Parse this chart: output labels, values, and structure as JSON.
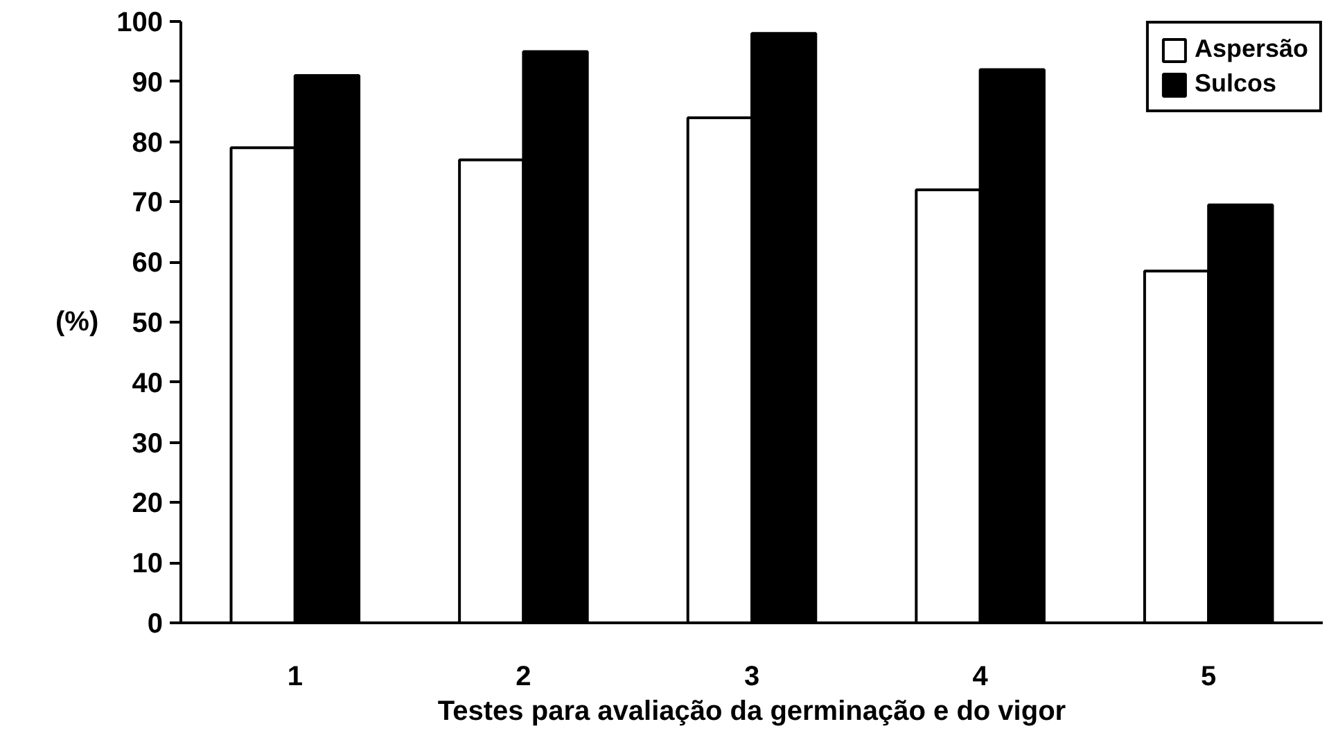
{
  "chart_data": {
    "type": "bar",
    "xlabel": "Testes para avaliação da germinação e do vigor",
    "ylabel": "(%)",
    "categories": [
      "1",
      "2",
      "3",
      "4",
      "5"
    ],
    "series": [
      {
        "name": "Aspersão",
        "color": "#ffffff",
        "values": [
          79,
          77,
          84,
          72,
          58.5
        ]
      },
      {
        "name": "Sulcos",
        "color": "#000000",
        "values": [
          91,
          95,
          98,
          92,
          69.5
        ]
      }
    ],
    "ylim": [
      0,
      100
    ],
    "yticks": [
      0,
      10,
      20,
      30,
      40,
      50,
      60,
      70,
      80,
      90,
      100
    ],
    "grid": false,
    "legend": "top right"
  }
}
